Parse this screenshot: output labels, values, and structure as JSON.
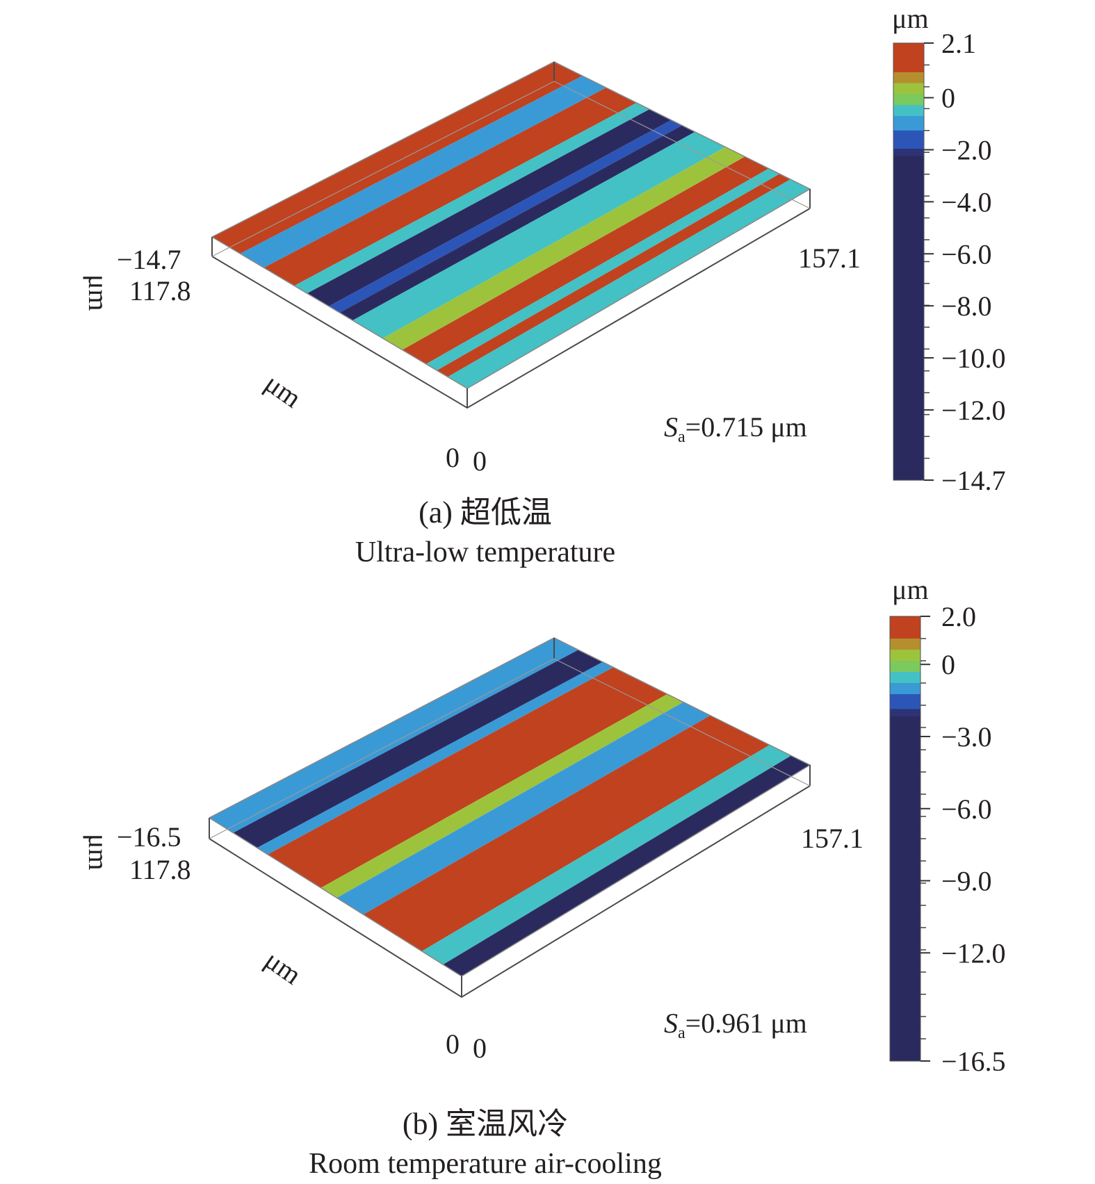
{
  "chart_data": [
    {
      "type": "heatmap",
      "panel": "a",
      "caption_cn": "(a) 超低温",
      "caption_en": "Ultra-low temperature",
      "roughness_label": "Sa",
      "roughness_value": "=0.715 μm",
      "axes": {
        "x_max": "157.1",
        "y_max": "117.8",
        "z_min": "−14.7",
        "unit": "μm",
        "x_origin": "0",
        "y_origin": "0"
      },
      "colorbar": {
        "unit": "μm",
        "range": [
          -14.7,
          2.1
        ],
        "ticks": [
          {
            "value": 2.1,
            "label": "2.1"
          },
          {
            "value": 0,
            "label": "0"
          },
          {
            "value": -2.0,
            "label": "−2.0"
          },
          {
            "value": -4.0,
            "label": "−4.0"
          },
          {
            "value": -6.0,
            "label": "−6.0"
          },
          {
            "value": -8.0,
            "label": "−8.0"
          },
          {
            "value": -10.0,
            "label": "−10.0"
          },
          {
            "value": -12.0,
            "label": "−12.0"
          },
          {
            "value": -14.7,
            "label": "−14.7"
          }
        ]
      },
      "stripes": [
        {
          "level": 1.6,
          "width": 1.3
        },
        {
          "level": -0.8,
          "width": 1.1
        },
        {
          "level": 1.8,
          "width": 1.4
        },
        {
          "level": -0.5,
          "width": 0.6
        },
        {
          "level": -2.4,
          "width": 1.0
        },
        {
          "level": -1.4,
          "width": 0.5
        },
        {
          "level": -2.6,
          "width": 0.6
        },
        {
          "level": -0.6,
          "width": 1.4
        },
        {
          "level": 0.6,
          "width": 0.9
        },
        {
          "level": 1.7,
          "width": 1.1
        },
        {
          "level": -0.5,
          "width": 0.5
        },
        {
          "level": 1.5,
          "width": 0.5
        },
        {
          "level": -0.4,
          "width": 0.9
        }
      ]
    },
    {
      "type": "heatmap",
      "panel": "b",
      "caption_cn": "(b) 室温风冷",
      "caption_en": "Room temperature air-cooling",
      "roughness_label": "Sa",
      "roughness_value": "=0.961 μm",
      "axes": {
        "x_max": "157.1",
        "y_max": "117.8",
        "z_min": "−16.5",
        "unit": "μm",
        "x_origin": "0",
        "y_origin": "0"
      },
      "colorbar": {
        "unit": "μm",
        "range": [
          -16.5,
          2.0
        ],
        "ticks": [
          {
            "value": 2.0,
            "label": "2.0"
          },
          {
            "value": 0,
            "label": "0"
          },
          {
            "value": -3.0,
            "label": "−3.0"
          },
          {
            "value": -6.0,
            "label": "−6.0"
          },
          {
            "value": -9.0,
            "label": "−9.0"
          },
          {
            "value": -12.0,
            "label": "−12.0"
          },
          {
            "value": -16.5,
            "label": "−16.5"
          }
        ]
      },
      "stripes": [
        {
          "level": -1.0,
          "width": 0.9
        },
        {
          "level": -2.6,
          "width": 0.9
        },
        {
          "level": -0.8,
          "width": 0.4
        },
        {
          "level": 1.6,
          "width": 2.0
        },
        {
          "level": 0.4,
          "width": 0.6
        },
        {
          "level": -0.8,
          "width": 1.0
        },
        {
          "level": 1.6,
          "width": 2.2
        },
        {
          "level": -0.6,
          "width": 0.8
        },
        {
          "level": -2.5,
          "width": 0.7
        }
      ]
    }
  ]
}
